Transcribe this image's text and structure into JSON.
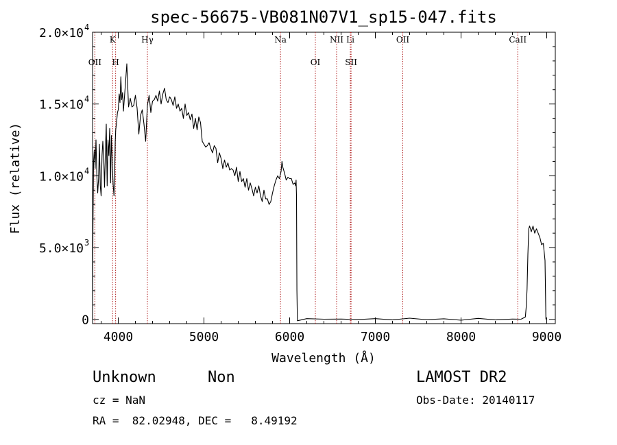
{
  "chart_data": {
    "type": "line",
    "title": "spec-56675-VB081N07V1_sp15-047.fits",
    "xlabel": "Wavelength (Å)",
    "ylabel": "Flux (relative)",
    "xlim": [
      3700,
      9100
    ],
    "ylim": [
      -300,
      20000
    ],
    "x_ticks": [
      4000,
      5000,
      6000,
      7000,
      8000,
      9000
    ],
    "y_ticks": [
      {
        "value": 0,
        "mantissa": "0",
        "exp": ""
      },
      {
        "value": 5000,
        "mantissa": "5.0×10",
        "exp": "3"
      },
      {
        "value": 10000,
        "mantissa": "1.0×10",
        "exp": "4"
      },
      {
        "value": 15000,
        "mantissa": "1.5×10",
        "exp": "4"
      },
      {
        "value": 20000,
        "mantissa": "2.0×10",
        "exp": "4"
      }
    ],
    "grid": false,
    "series": [
      {
        "x": [
          3700,
          3705,
          3712,
          3720,
          3730,
          3740,
          3750,
          3760,
          3770,
          3780,
          3790,
          3800,
          3810,
          3820,
          3830,
          3840,
          3850,
          3860,
          3870,
          3880,
          3890,
          3900,
          3910,
          3920,
          3930,
          3940,
          3950,
          3960,
          3965,
          3970,
          3980,
          3990,
          4000,
          4010,
          4020,
          4030,
          4040,
          4050,
          4060,
          4080,
          4100,
          4120,
          4140,
          4160,
          4180,
          4200,
          4220,
          4240,
          4260,
          4280,
          4300,
          4320,
          4340,
          4360,
          4380,
          4400,
          4420,
          4440,
          4460,
          4480,
          4500,
          4520,
          4540,
          4560,
          4580,
          4600,
          4620,
          4640,
          4660,
          4680,
          4700,
          4720,
          4740,
          4760,
          4780,
          4800,
          4820,
          4840,
          4860,
          4880,
          4900,
          4920,
          4940,
          4960,
          4980,
          5000,
          5020,
          5040,
          5060,
          5080,
          5100,
          5120,
          5140,
          5160,
          5180,
          5200,
          5220,
          5240,
          5260,
          5280,
          5300,
          5320,
          5340,
          5360,
          5380,
          5400,
          5420,
          5440,
          5460,
          5480,
          5500,
          5520,
          5540,
          5560,
          5580,
          5600,
          5620,
          5640,
          5660,
          5680,
          5700,
          5720,
          5740,
          5760,
          5780,
          5800,
          5820,
          5840,
          5860,
          5880,
          5900,
          5910,
          5920,
          5940,
          5960,
          5980,
          6000,
          6020,
          6040,
          6060,
          6070,
          6075,
          6080,
          6085,
          6090,
          6200,
          6400,
          6600,
          6800,
          7000,
          7200,
          7400,
          7600,
          7800,
          8000,
          8200,
          8400,
          8600,
          8700,
          8750,
          8760,
          8770,
          8780,
          8790,
          8800,
          8820,
          8840,
          8860,
          8880,
          8900,
          8920,
          8940,
          8960,
          8980,
          8990
        ],
        "y": [
          0,
          6500,
          11000,
          11800,
          10500,
          12500,
          10000,
          8800,
          9800,
          12200,
          9300,
          8600,
          11400,
          12400,
          11200,
          9200,
          11800,
          13600,
          9300,
          12500,
          11400,
          13300,
          9500,
          12800,
          10800,
          9400,
          8600,
          10800,
          12400,
          13200,
          13700,
          14400,
          14600,
          15700,
          15100,
          16900,
          15300,
          15800,
          14500,
          16100,
          17800,
          14800,
          15400,
          14800,
          14900,
          15600,
          14700,
          12900,
          14200,
          14600,
          13600,
          12400,
          14900,
          15600,
          14400,
          15200,
          15300,
          15600,
          15200,
          15900,
          15000,
          15700,
          16100,
          15300,
          15100,
          15500,
          15300,
          14900,
          15500,
          14700,
          15000,
          14500,
          14700,
          14000,
          15000,
          14200,
          14400,
          13900,
          14300,
          13300,
          14000,
          13200,
          14100,
          13700,
          12400,
          12200,
          12000,
          12100,
          12300,
          11900,
          11600,
          12100,
          11900,
          10900,
          11600,
          11200,
          10500,
          11100,
          10600,
          10900,
          10400,
          10500,
          10400,
          10000,
          10600,
          9600,
          10300,
          9600,
          9800,
          9200,
          9800,
          9000,
          9500,
          9100,
          8600,
          9200,
          8800,
          9300,
          8600,
          8200,
          9000,
          8400,
          8400,
          8000,
          8200,
          8800,
          9300,
          9700,
          10000,
          9800,
          10300,
          11000,
          10600,
          10200,
          9700,
          9900,
          9800,
          9800,
          9400,
          9500,
          9300,
          9700,
          8600,
          2000,
          -100,
          50,
          10,
          20,
          -20,
          50,
          -40,
          80,
          -30,
          40,
          -60,
          70,
          -40,
          20,
          10,
          160,
          820,
          2100,
          4500,
          6300,
          6500,
          6100,
          6500,
          6000,
          6300,
          6000,
          5700,
          5200,
          5300,
          4100,
          0
        ],
        "color": "#000000"
      }
    ],
    "lines": [
      {
        "label": "OII",
        "x": 3727,
        "level": 2
      },
      {
        "label": "K",
        "x": 3934,
        "level": 1
      },
      {
        "label": "H",
        "x": 3969,
        "level": 2
      },
      {
        "label": "Hγ",
        "x": 4340,
        "level": 1
      },
      {
        "label": "Na",
        "x": 5893,
        "level": 1
      },
      {
        "label": "OI",
        "x": 6300,
        "level": 2
      },
      {
        "label": "NII",
        "x": 6548,
        "level": 1
      },
      {
        "label": "Li",
        "x": 6708,
        "level": 1
      },
      {
        "label": "SII",
        "x": 6717,
        "level": 2
      },
      {
        "label": "OII",
        "x": 7320,
        "level": 1
      },
      {
        "label": "CaII",
        "x": 8662,
        "level": 1
      }
    ]
  },
  "info": {
    "class_label": "Unknown",
    "subclass_label": "Non",
    "survey": "LAMOST DR2",
    "cz": "cz = NaN",
    "obs_date": "Obs-Date: 20140117",
    "coords": "RA =  82.02948, DEC =   8.49192"
  }
}
